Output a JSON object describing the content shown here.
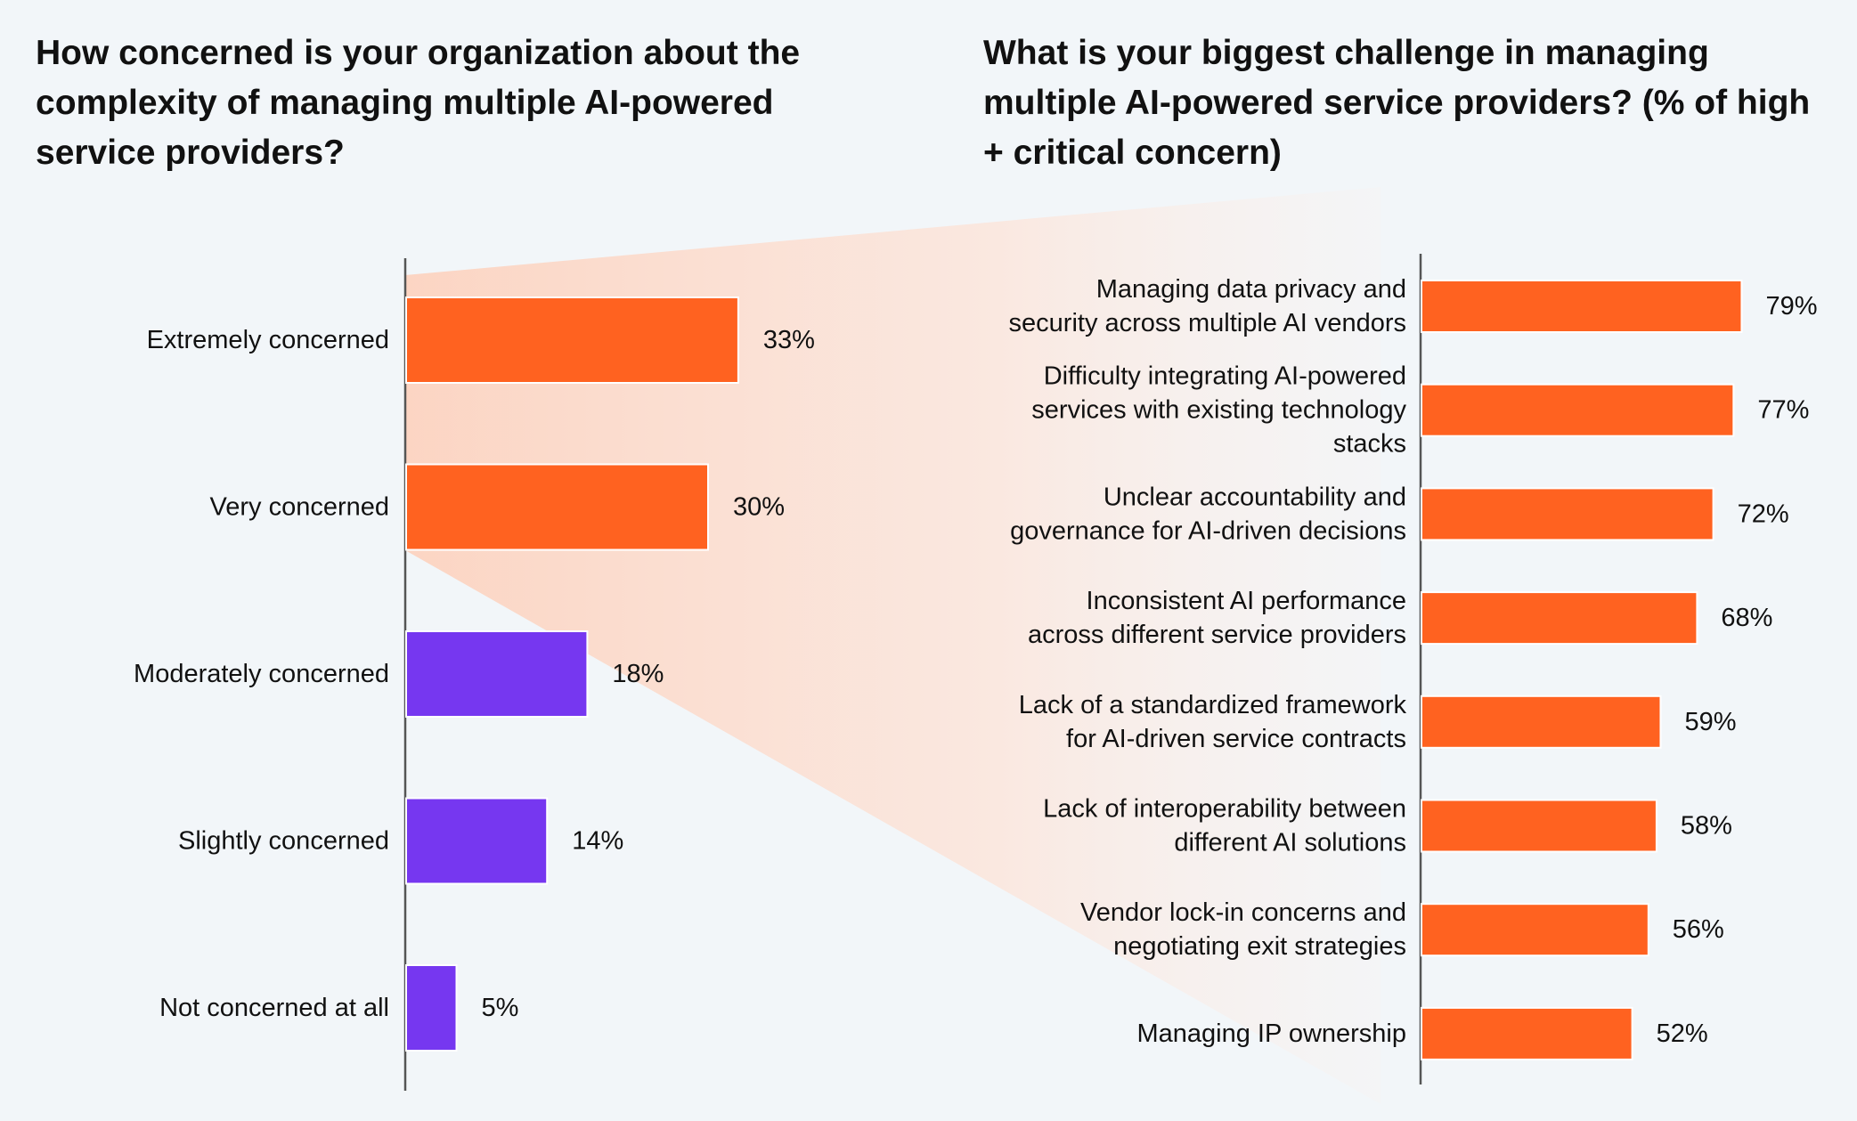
{
  "chart_data": [
    {
      "type": "bar",
      "orientation": "horizontal",
      "title": "How concerned is your organization about the complexity of managing multiple AI-powered service providers?",
      "categories": [
        "Extremely concerned",
        "Very concerned",
        "Moderately concerned",
        "Slightly concerned",
        "Not concerned at all"
      ],
      "values": [
        33,
        30,
        18,
        14,
        5
      ],
      "value_labels": [
        "33%",
        "30%",
        "18%",
        "14%",
        "5%"
      ],
      "bar_colors": [
        "#ff6220",
        "#ff6220",
        "#7637f0",
        "#7637f0",
        "#7637f0"
      ],
      "xlim": [
        0,
        100
      ],
      "grid": false,
      "legend": "none"
    },
    {
      "type": "bar",
      "orientation": "horizontal",
      "title": "What is your biggest challenge in managing multiple AI-powered service providers? (% of high + critical concern)",
      "categories": [
        [
          "Managing data privacy and",
          "security across multiple AI vendors"
        ],
        [
          "Difficulty integrating AI-powered",
          "services with existing technology",
          "stacks"
        ],
        [
          "Unclear accountability and",
          "governance for AI-driven decisions"
        ],
        [
          "Inconsistent AI performance",
          "across different service providers"
        ],
        [
          "Lack of a standardized framework",
          "for AI-driven service contracts"
        ],
        [
          "Lack of interoperability between",
          "different AI solutions"
        ],
        [
          "Vendor lock-in concerns and",
          "negotiating exit strategies"
        ],
        [
          "Managing IP ownership"
        ]
      ],
      "values": [
        79,
        77,
        72,
        68,
        59,
        58,
        56,
        52
      ],
      "value_labels": [
        "79%",
        "77%",
        "72%",
        "68%",
        "59%",
        "58%",
        "56%",
        "52%"
      ],
      "bar_color": "#ff6220",
      "xlim": [
        0,
        100
      ],
      "grid": false,
      "legend": "none"
    }
  ],
  "colors": {
    "accent_orange": "#ff6220",
    "accent_purple": "#7637f0",
    "axis": "#555555",
    "background": "#f2f6f9",
    "highlight_fan": "#fcd9c9"
  }
}
